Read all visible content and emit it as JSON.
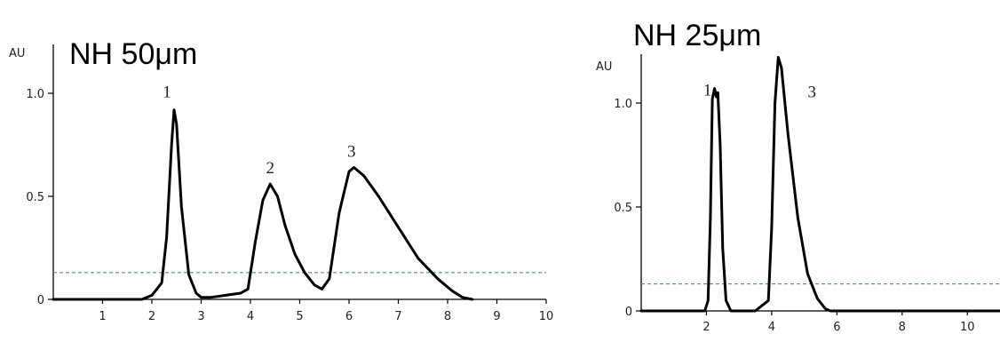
{
  "chart_data": [
    {
      "type": "line",
      "title": "NH 50μm",
      "ylabel": "AU",
      "xlim": [
        0,
        10
      ],
      "ylim": [
        0,
        1.0
      ],
      "x_ticks": [
        "1",
        "2",
        "3",
        "4",
        "5",
        "6",
        "7",
        "8",
        "9",
        "10"
      ],
      "y_ticks": [
        "0",
        "0.5",
        "1.0"
      ],
      "peaks": [
        {
          "label": "1",
          "x": 2.45,
          "y": 0.92
        },
        {
          "label": "2",
          "x": 4.4,
          "y": 0.56
        },
        {
          "label": "3",
          "x": 6.05,
          "y": 0.64
        }
      ],
      "baseline_y": 0.13,
      "series": [
        {
          "x": [
            0,
            1.8,
            2.0,
            2.2,
            2.3,
            2.4,
            2.45,
            2.5,
            2.6,
            2.75,
            2.9,
            3.0,
            3.2,
            3.5,
            3.8,
            3.95,
            4.1,
            4.25,
            4.4,
            4.55,
            4.7,
            4.9,
            5.1,
            5.3,
            5.45,
            5.6,
            5.8,
            6.0,
            6.1,
            6.3,
            6.6,
            7.0,
            7.4,
            7.8,
            8.1,
            8.3,
            8.5
          ],
          "y": [
            0,
            0,
            0.02,
            0.08,
            0.3,
            0.75,
            0.92,
            0.85,
            0.45,
            0.12,
            0.03,
            0.01,
            0.01,
            0.02,
            0.03,
            0.05,
            0.28,
            0.48,
            0.56,
            0.5,
            0.36,
            0.22,
            0.13,
            0.07,
            0.05,
            0.1,
            0.42,
            0.62,
            0.64,
            0.6,
            0.5,
            0.35,
            0.2,
            0.1,
            0.04,
            0.01,
            0
          ]
        }
      ]
    },
    {
      "type": "line",
      "title": "NH 25μm",
      "ylabel": "AU",
      "xlim": [
        0,
        11
      ],
      "ylim": [
        0,
        1.0
      ],
      "x_ticks": [
        "2",
        "4",
        "6",
        "8",
        "10"
      ],
      "y_ticks": [
        "0",
        "0.5",
        "1.0"
      ],
      "peaks": [
        {
          "label": "1",
          "x": 2.25,
          "y": 1.07
        },
        {
          "label": "3",
          "x": 4.2,
          "y": 1.22
        }
      ],
      "baseline_y": 0.13,
      "series": [
        {
          "x": [
            0,
            1.95,
            2.05,
            2.12,
            2.18,
            2.25,
            2.3,
            2.35,
            2.42,
            2.5,
            2.6,
            2.75,
            3.0,
            3.5,
            3.9,
            4.0,
            4.1,
            4.2,
            4.3,
            4.5,
            4.8,
            5.1,
            5.4,
            5.65,
            5.8,
            11
          ],
          "y": [
            0,
            0,
            0.05,
            0.45,
            1.02,
            1.07,
            1.03,
            1.05,
            0.8,
            0.3,
            0.05,
            0,
            0,
            0,
            0.05,
            0.4,
            1.0,
            1.22,
            1.17,
            0.85,
            0.45,
            0.18,
            0.06,
            0.01,
            0,
            0
          ]
        }
      ]
    }
  ]
}
